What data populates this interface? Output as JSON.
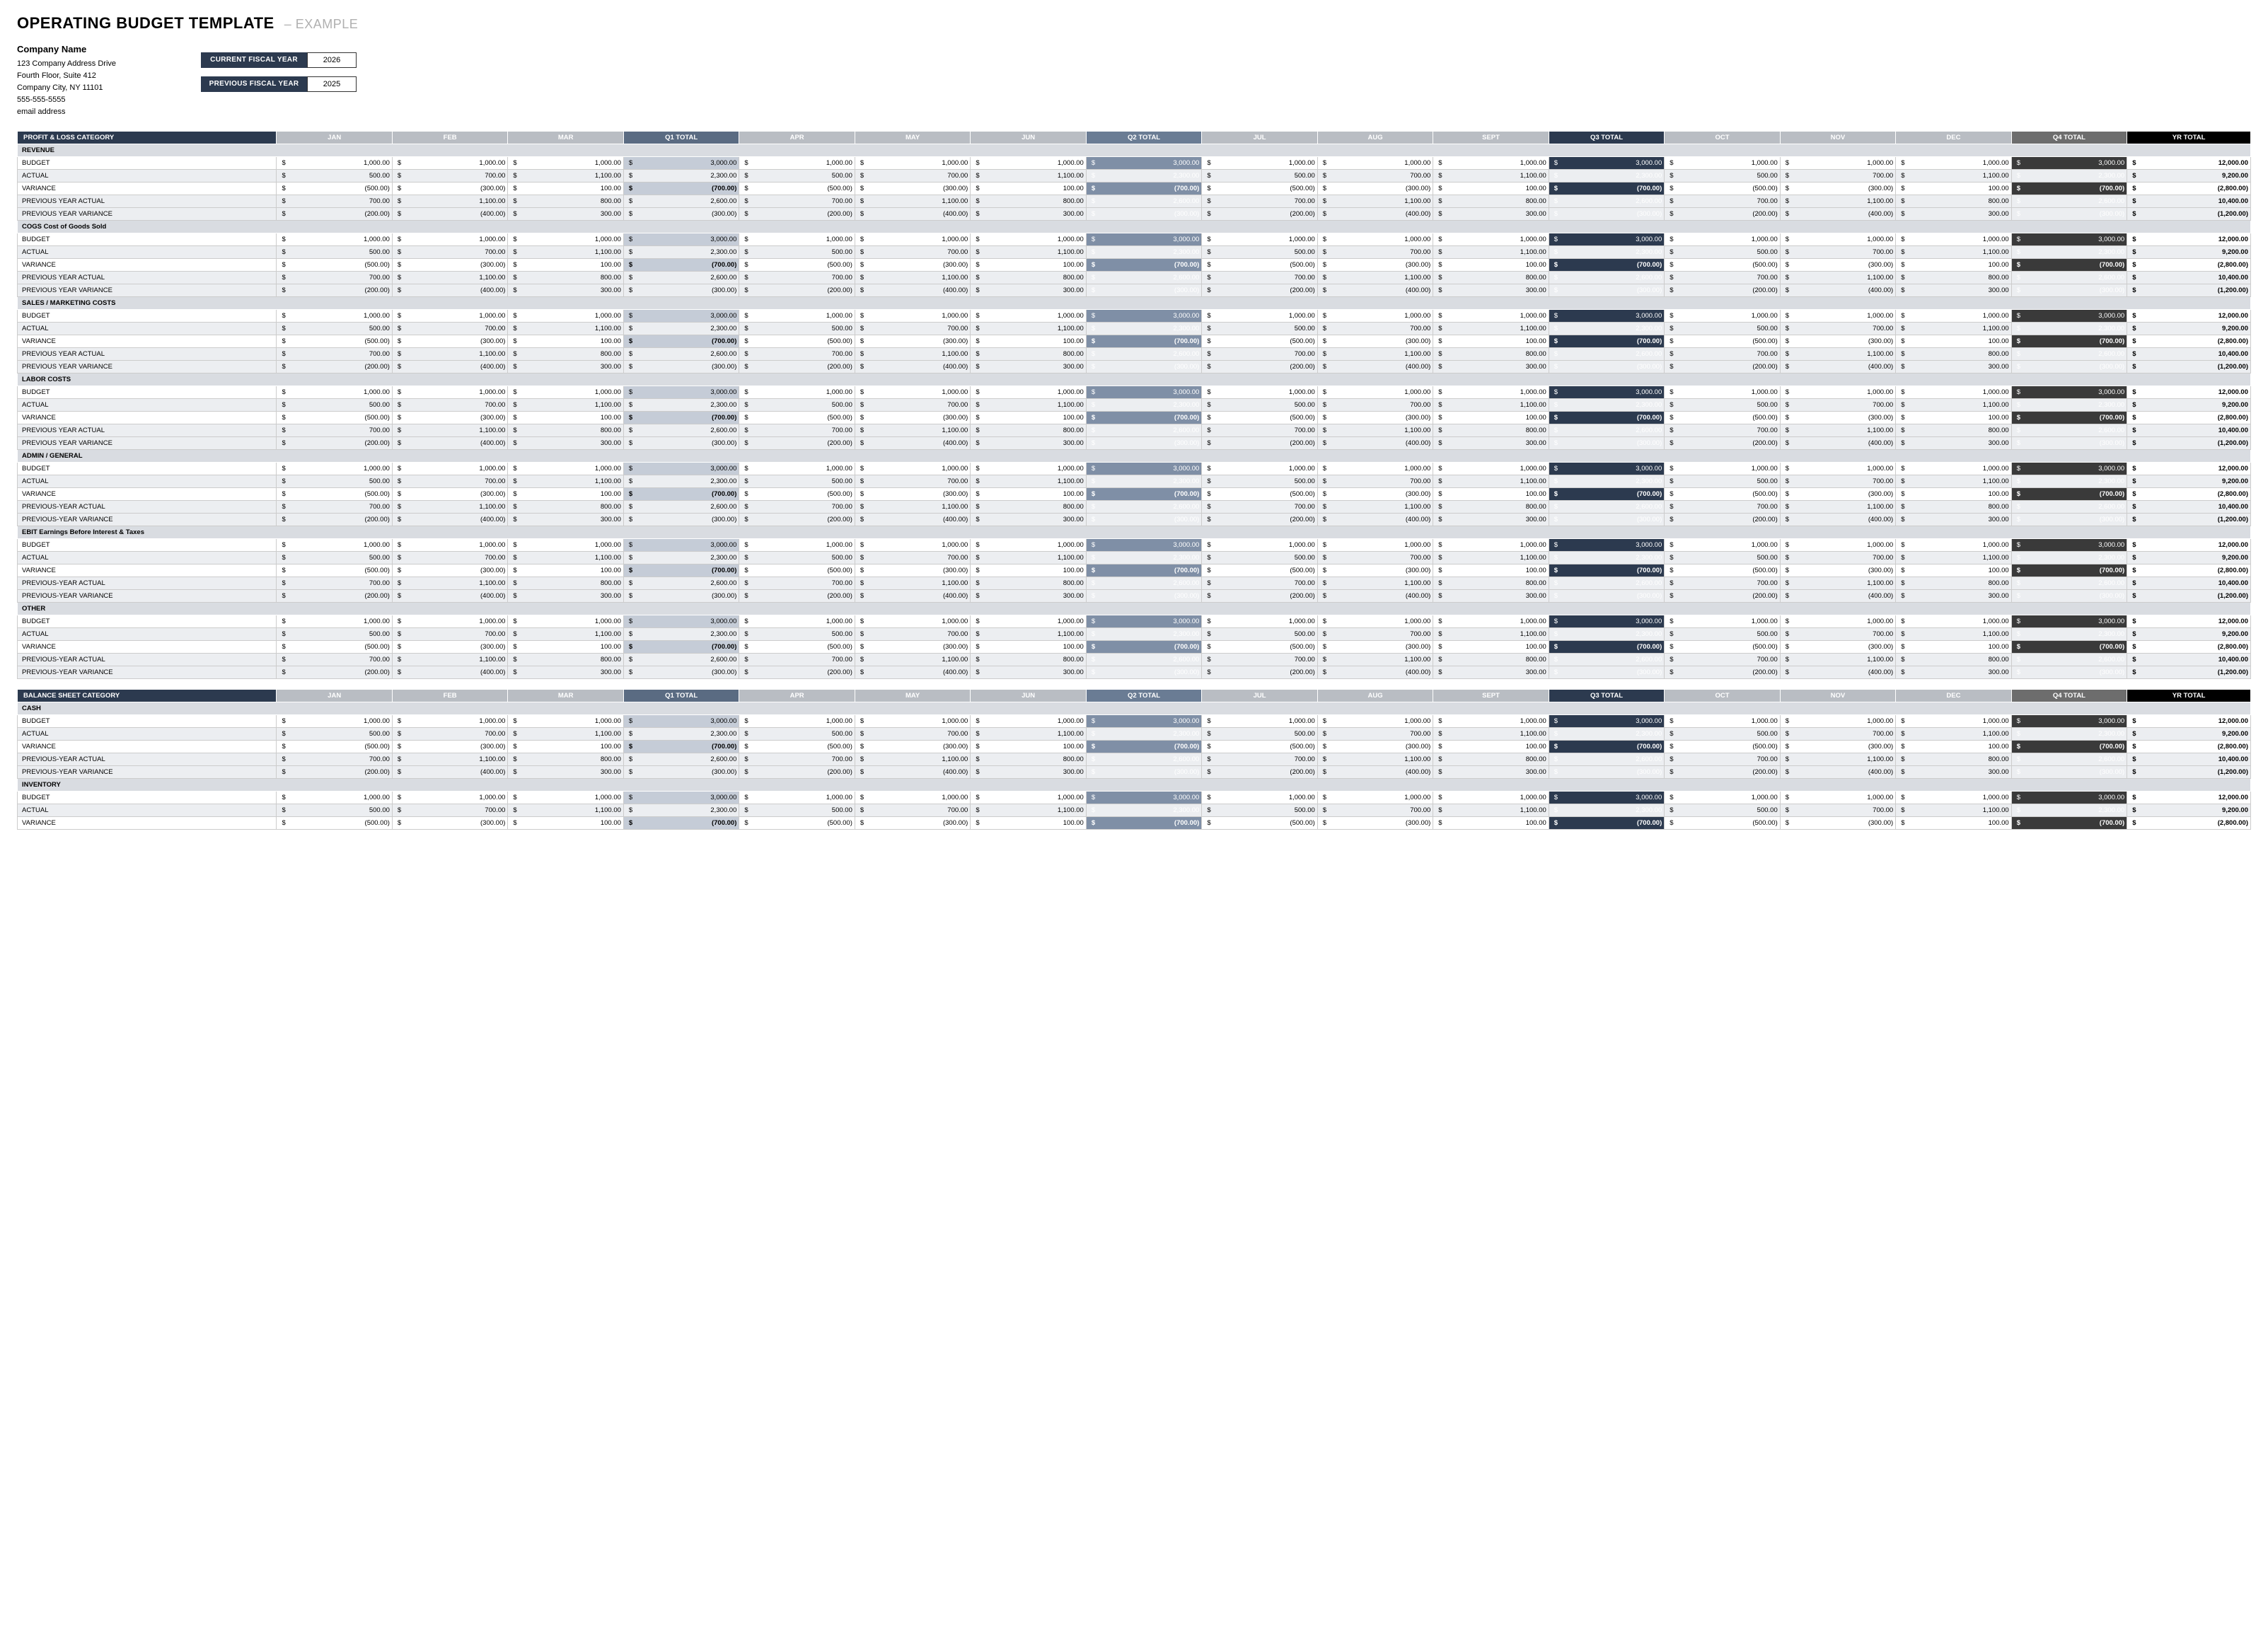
{
  "title": "OPERATING BUDGET TEMPLATE",
  "subtitle": "–  EXAMPLE",
  "company": {
    "name": "Company Name",
    "addr1": "123 Company Address Drive",
    "addr2": "Fourth Floor, Suite 412",
    "city": "Company City, NY  11101",
    "phone": "555-555-5555",
    "email": "email address"
  },
  "fy": {
    "current_label": "CURRENT FISCAL YEAR",
    "current_val": "2026",
    "prev_label": "PREVIOUS FISCAL YEAR",
    "prev_val": "2025"
  },
  "months": [
    "JAN",
    "FEB",
    "MAR",
    "APR",
    "MAY",
    "JUN",
    "JUL",
    "AUG",
    "SEPT",
    "OCT",
    "NOV",
    "DEC"
  ],
  "qtotals": [
    "Q1 TOTAL",
    "Q2 TOTAL",
    "Q3 TOTAL",
    "Q4 TOTAL"
  ],
  "yr_label": "YR TOTAL",
  "pl_header": "PROFIT & LOSS CATEGORY",
  "bs_header": "BALANCE SHEET CATEGORY",
  "row_patterns": {
    "budget": {
      "label": "BUDGET",
      "m": [
        "1,000.00",
        "1,000.00",
        "1,000.00"
      ],
      "qt": "3,000.00",
      "yr": "12,000.00",
      "bold": false,
      "paren": false,
      "alt": false
    },
    "actual": {
      "label": "ACTUAL",
      "m": [
        "500.00",
        "700.00",
        "1,100.00"
      ],
      "qt": "2,300.00",
      "yr": "9,200.00",
      "bold": false,
      "paren": false,
      "alt": true
    },
    "variance": {
      "label": "VARIANCE",
      "m": [
        "(500.00)",
        "(300.00)",
        "100.00"
      ],
      "qt": "(700.00)",
      "yr": "(2,800.00)",
      "bold": true,
      "paren": true,
      "alt": false
    },
    "pya": {
      "label": "PREVIOUS YEAR ACTUAL",
      "m": [
        "700.00",
        "1,100.00",
        "800.00"
      ],
      "qt": "2,600.00",
      "yr": "10,400.00",
      "bold": false,
      "paren": false,
      "alt": true
    },
    "pyv": {
      "label": "PREVIOUS YEAR VARIANCE",
      "m": [
        "(200.00)",
        "(400.00)",
        "300.00"
      ],
      "qt": "(300.00)",
      "yr": "(1,200.00)",
      "bold": false,
      "paren": true,
      "alt": true
    }
  },
  "row_patterns_dash": {
    "pya": {
      "label": "PREVIOUS-YEAR ACTUAL",
      "m": [
        "700.00",
        "1,100.00",
        "800.00"
      ],
      "qt": "2,600.00",
      "yr": "10,400.00",
      "bold": false,
      "paren": false,
      "alt": true
    },
    "pyv": {
      "label": "PREVIOUS-YEAR VARIANCE",
      "m": [
        "(200.00)",
        "(400.00)",
        "300.00"
      ],
      "qt": "(300.00)",
      "yr": "(1,200.00)",
      "bold": false,
      "paren": true,
      "alt": true
    }
  },
  "pl_sections": [
    {
      "name": "REVENUE",
      "rows": [
        "budget",
        "actual",
        "variance",
        "pya",
        "pyv"
      ],
      "dash": false
    },
    {
      "name": "COGS Cost of Goods Sold",
      "rows": [
        "budget",
        "actual",
        "variance",
        "pya",
        "pyv"
      ],
      "dash": false
    },
    {
      "name": "SALES / MARKETING COSTS",
      "rows": [
        "budget",
        "actual",
        "variance",
        "pya",
        "pyv"
      ],
      "dash": false
    },
    {
      "name": "LABOR COSTS",
      "rows": [
        "budget",
        "actual",
        "variance",
        "pya",
        "pyv"
      ],
      "dash": false
    },
    {
      "name": "ADMIN / GENERAL",
      "rows": [
        "budget",
        "actual",
        "variance",
        "pya",
        "pyv"
      ],
      "dash": true
    },
    {
      "name": "EBIT Earnings Before Interest & Taxes",
      "rows": [
        "budget",
        "actual",
        "variance",
        "pya",
        "pyv"
      ],
      "dash": true
    },
    {
      "name": "OTHER",
      "rows": [
        "budget",
        "actual",
        "variance",
        "pya",
        "pyv"
      ],
      "dash": true
    }
  ],
  "bs_sections": [
    {
      "name": "CASH",
      "rows": [
        "budget",
        "actual",
        "variance",
        "pya",
        "pyv"
      ],
      "dash": true
    },
    {
      "name": "INVENTORY",
      "rows": [
        "budget",
        "actual",
        "variance"
      ],
      "dash": false
    }
  ],
  "colors": {
    "hdr_cat": "#2c3a4f",
    "hdr_mon": "#b9bdc3",
    "q1": "#c5ccd7",
    "q1d": "#a8b2c2",
    "q2": "#7f8fa6",
    "q2d": "#6a7c94",
    "q3": "#2c3a4f",
    "q3d": "#1f2b3d",
    "q4": "#3a3a3a",
    "q4d": "#2a2a2a",
    "yr": "#000000",
    "section": "#d9dce1"
  }
}
